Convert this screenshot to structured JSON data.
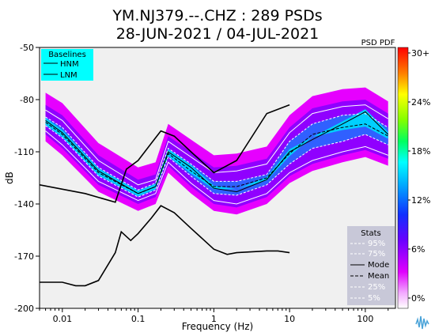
{
  "chart_data": {
    "type": "heatmap",
    "title": "YM.NJ379.--.CHZ : 289 PSDs",
    "subtitle": "28-JUN-2021 / 04-JUL-2021",
    "xlabel": "Frequency (Hz)",
    "ylabel": "dB",
    "x_scale": "log",
    "xlim": [
      0.005,
      250
    ],
    "ylim": [
      -200,
      -50
    ],
    "x_ticks": [
      {
        "value": 0.01,
        "label": "0.01"
      },
      {
        "value": 0.1,
        "label": "0.1"
      },
      {
        "value": 1,
        "label": "1"
      },
      {
        "value": 10,
        "label": "10"
      },
      {
        "value": 100,
        "label": "100"
      }
    ],
    "y_ticks": [
      {
        "value": -50,
        "label": "-50"
      },
      {
        "value": -80,
        "label": "-80"
      },
      {
        "value": -110,
        "label": "-110"
      },
      {
        "value": -140,
        "label": "-140"
      },
      {
        "value": -170,
        "label": "-170"
      },
      {
        "value": -200,
        "label": "-200"
      }
    ],
    "colorbar": {
      "title": "PSD PDF",
      "ticks": [
        "30+",
        "24%",
        "18%",
        "12%",
        "6%",
        "0%"
      ],
      "range": [
        0,
        30
      ]
    },
    "baselines": {
      "title": "Baselines",
      "series": [
        {
          "name": "HNM",
          "x": [
            0.005,
            0.02,
            0.05,
            0.07,
            0.1,
            0.15,
            0.2,
            0.3,
            0.5,
            1,
            2,
            5,
            10
          ],
          "y": [
            -129,
            -134,
            -139,
            -120,
            -115,
            -105,
            -98,
            -101,
            -110,
            -122,
            -115,
            -88,
            -83
          ]
        },
        {
          "name": "LNM",
          "x": [
            0.005,
            0.01,
            0.015,
            0.02,
            0.03,
            0.05,
            0.06,
            0.08,
            0.1,
            0.15,
            0.2,
            0.3,
            0.5,
            1,
            1.5,
            2,
            5,
            7,
            10
          ],
          "y": [
            -185,
            -185,
            -187,
            -187,
            -184,
            -168,
            -156,
            -161,
            -157,
            -148,
            -141,
            -145,
            -154,
            -166,
            -169,
            -168,
            -167,
            -167,
            -168
          ]
        }
      ]
    },
    "stats": {
      "title": "Stats",
      "series": [
        {
          "name": "95%",
          "x": [
            0.006,
            0.01,
            0.03,
            0.1,
            0.17,
            0.25,
            0.5,
            1,
            2,
            5,
            10,
            20,
            50,
            100,
            200
          ],
          "y": [
            -86,
            -92,
            -115,
            -129,
            -126,
            -104,
            -113,
            -122,
            -121,
            -117,
            -99,
            -88,
            -84,
            -83,
            -91
          ]
        },
        {
          "name": "75%",
          "x": [
            0.006,
            0.01,
            0.03,
            0.1,
            0.17,
            0.25,
            0.5,
            1,
            2,
            5,
            10,
            20,
            50,
            100,
            200
          ],
          "y": [
            -90,
            -96,
            -119,
            -132,
            -128,
            -108,
            -117,
            -127,
            -127,
            -123,
            -104,
            -94,
            -89,
            -88,
            -96
          ]
        },
        {
          "name": "Mode",
          "x": [
            0.006,
            0.01,
            0.03,
            0.1,
            0.17,
            0.25,
            0.5,
            1,
            2,
            5,
            10,
            20,
            50,
            100,
            200
          ],
          "y": [
            -92,
            -99,
            -121,
            -134,
            -130,
            -110,
            -119,
            -131,
            -133,
            -126,
            -110,
            -103,
            -94,
            -87,
            -100
          ]
        },
        {
          "name": "Mean",
          "x": [
            0.006,
            0.01,
            0.03,
            0.1,
            0.17,
            0.25,
            0.5,
            1,
            2,
            5,
            10,
            20,
            50,
            100,
            200
          ],
          "y": [
            -93,
            -100,
            -122,
            -134,
            -130,
            -111,
            -121,
            -130,
            -130,
            -125,
            -111,
            -100,
            -96,
            -94,
            -101
          ]
        },
        {
          "name": "25%",
          "x": [
            0.006,
            0.01,
            0.03,
            0.1,
            0.17,
            0.25,
            0.5,
            1,
            2,
            5,
            10,
            20,
            50,
            100,
            200
          ],
          "y": [
            -95,
            -102,
            -124,
            -136,
            -132,
            -113,
            -124,
            -134,
            -135,
            -129,
            -117,
            -108,
            -104,
            -100,
            -106
          ]
        },
        {
          "name": "5%",
          "x": [
            0.006,
            0.01,
            0.03,
            0.1,
            0.17,
            0.25,
            0.5,
            1,
            2,
            5,
            10,
            20,
            50,
            100,
            200
          ],
          "y": [
            -98,
            -106,
            -127,
            -138,
            -134,
            -116,
            -128,
            -138,
            -140,
            -134,
            -122,
            -115,
            -110,
            -107,
            -112
          ]
        }
      ]
    },
    "density_colors": [
      "#ffffff",
      "#e600ff",
      "#9000ff",
      "#3060ff",
      "#00d0ff",
      "#00ff80",
      "#c0ff00",
      "#ffcc00",
      "#ff3000"
    ]
  }
}
